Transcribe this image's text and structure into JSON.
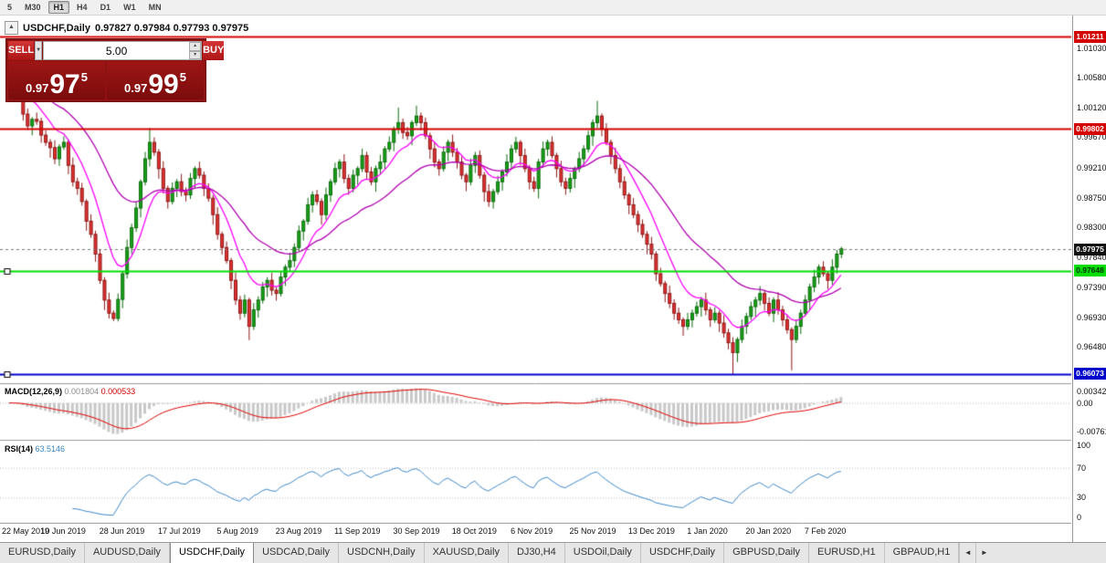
{
  "icons": {
    "collapse": "▲",
    "dropdown": "▼",
    "spin_up": "▲",
    "spin_down": "▼",
    "tab_left": "◄",
    "tab_right": "►"
  },
  "toolbar": {
    "timeframes": [
      {
        "label": "5",
        "active": false
      },
      {
        "label": "M30",
        "active": false
      },
      {
        "label": "H1",
        "active": true
      },
      {
        "label": "H4",
        "active": false
      },
      {
        "label": "D1",
        "active": false
      },
      {
        "label": "W1",
        "active": false
      },
      {
        "label": "MN",
        "active": false
      }
    ]
  },
  "chart": {
    "symbol_title": "USDCHF,Daily",
    "ohlc_text": "0.97827 0.97984 0.97793 0.97975"
  },
  "trade_panel": {
    "sell_label": "SELL",
    "buy_label": "BUY",
    "volume": "5.00",
    "sell_quote": {
      "prefix": "0.97",
      "big": "97",
      "pip": "5"
    },
    "buy_quote": {
      "prefix": "0.97",
      "big": "99",
      "pip": "5"
    }
  },
  "price_scale": {
    "labels": [
      "1.01030",
      "1.00580",
      "1.00120",
      "0.99670",
      "0.99210",
      "0.98750",
      "0.98300",
      "0.97840",
      "0.97390",
      "0.96930",
      "0.96480"
    ]
  },
  "levels": [
    {
      "price": 1.01211,
      "label": "1.01211",
      "color": "#d40000",
      "badge_bg": "#d40000",
      "badge_fg": "#ffffff",
      "width": 2,
      "style": "solid",
      "handles": false
    },
    {
      "price": 0.99802,
      "label": "0.99802",
      "color": "#d40000",
      "badge_bg": "#d40000",
      "badge_fg": "#ffffff",
      "width": 2,
      "style": "solid",
      "handles": false
    },
    {
      "price": 0.97975,
      "label": "0.97975",
      "color": "#777777",
      "badge_bg": "#111111",
      "badge_fg": "#ffffff",
      "width": 1,
      "style": "dashed",
      "handles": false
    },
    {
      "price": 0.97648,
      "label": "0.97648",
      "color": "#00dd00",
      "badge_bg": "#00dd00",
      "badge_fg": "#003300",
      "width": 2,
      "style": "solid",
      "handles": true
    },
    {
      "price": 0.96073,
      "label": "0.96073",
      "color": "#0000cc",
      "badge_bg": "#0000cc",
      "badge_fg": "#ffffff",
      "width": 2,
      "style": "solid",
      "handles": true
    }
  ],
  "chart_data": {
    "type": "candlestick",
    "symbol": "USDCHF",
    "timeframe": "Daily",
    "title": "USDCHF,Daily",
    "x_labels": [
      "22 May 2019",
      "10 Jun 2019",
      "28 Jun 2019",
      "17 Jul 2019",
      "5 Aug 2019",
      "23 Aug 2019",
      "11 Sep 2019",
      "30 Sep 2019",
      "18 Oct 2019",
      "6 Nov 2019",
      "25 Nov 2019",
      "13 Dec 2019",
      "1 Jan 2020",
      "20 Jan 2020",
      "7 Feb 2020"
    ],
    "bars_per_label": 13,
    "y_range": {
      "min": 0.9585,
      "max": 1.0138
    },
    "open_first": 1.0063,
    "closes": [
      1.0055,
      1.0047,
      1.003,
      1.0003,
      0.9985,
      0.9995,
      0.9992,
      0.9971,
      0.996,
      0.9952,
      0.9935,
      0.9953,
      0.996,
      0.9925,
      0.99,
      0.989,
      0.987,
      0.984,
      0.982,
      0.979,
      0.975,
      0.972,
      0.97,
      0.9692,
      0.9721,
      0.976,
      0.98,
      0.983,
      0.986,
      0.99,
      0.9935,
      0.996,
      0.9945,
      0.992,
      0.989,
      0.987,
      0.989,
      0.99,
      0.9885,
      0.988,
      0.9905,
      0.992,
      0.991,
      0.989,
      0.9875,
      0.985,
      0.982,
      0.98,
      0.978,
      0.975,
      0.972,
      0.97,
      0.972,
      0.968,
      0.9705,
      0.972,
      0.974,
      0.975,
      0.9735,
      0.973,
      0.9755,
      0.977,
      0.978,
      0.98,
      0.9825,
      0.984,
      0.9865,
      0.988,
      0.987,
      0.985,
      0.988,
      0.99,
      0.992,
      0.993,
      0.9905,
      0.989,
      0.991,
      0.992,
      0.994,
      0.9915,
      0.99,
      0.992,
      0.993,
      0.995,
      0.996,
      0.998,
      0.999,
      0.9975,
      0.997,
      0.999,
      1.0,
      0.999,
      0.997,
      0.995,
      0.993,
      0.992,
      0.9945,
      0.996,
      0.9945,
      0.993,
      0.991,
      0.99,
      0.9925,
      0.994,
      0.991,
      0.9885,
      0.987,
      0.9885,
      0.99,
      0.9915,
      0.993,
      0.995,
      0.996,
      0.994,
      0.992,
      0.99,
      0.989,
      0.993,
      0.995,
      0.996,
      0.994,
      0.992,
      0.99,
      0.989,
      0.9905,
      0.992,
      0.9935,
      0.995,
      0.997,
      0.999,
      1.0,
      0.998,
      0.996,
      0.994,
      0.992,
      0.99,
      0.988,
      0.9865,
      0.985,
      0.9835,
      0.982,
      0.9805,
      0.979,
      0.976,
      0.9745,
      0.973,
      0.9715,
      0.97,
      0.969,
      0.968,
      0.969,
      0.97,
      0.971,
      0.972,
      0.9705,
      0.969,
      0.97,
      0.9685,
      0.967,
      0.9655,
      0.964,
      0.966,
      0.968,
      0.9695,
      0.971,
      0.972,
      0.973,
      0.9715,
      0.97,
      0.972,
      0.9705,
      0.969,
      0.9675,
      0.966,
      0.968,
      0.97,
      0.972,
      0.974,
      0.9755,
      0.977,
      0.976,
      0.975,
      0.977,
      0.979,
      0.9798
    ],
    "wick_pattern": [
      0.0013,
      0.0006,
      0.0017,
      0.0009,
      0.0012,
      0.0005,
      0.0015,
      0.0008,
      0.0011,
      0.0007,
      0.0016,
      0.0006
    ],
    "wick_overrides": {
      "0": {
        "h": 1.0078
      },
      "23": {
        "l": 0.9688
      },
      "31": {
        "h": 0.9982
      },
      "53": {
        "l": 0.9659
      },
      "86": {
        "h": 1.0013
      },
      "90": {
        "h": 1.0016
      },
      "130": {
        "h": 1.0023
      },
      "160": {
        "l": 0.9607
      },
      "173": {
        "l": 0.9613
      },
      "184": {
        "h": 0.9801
      }
    },
    "up_color": "#17a017",
    "up_border": "#0b6b0b",
    "down_color": "#e23030",
    "down_border": "#8b1616",
    "ma": [
      {
        "period": 10,
        "color": "#ff00ff"
      },
      {
        "period": 30,
        "color": "#b000b0"
      }
    ],
    "macd": {
      "label": "MACD(12,26,9)",
      "value_main": "0.001804",
      "value_signal": "0.000533",
      "fast": 12,
      "slow": 26,
      "signal_period": 9,
      "scale_top": "0.003428",
      "scale_zero": "0.00",
      "scale_bottom": "-0.007618",
      "histogram_color": "#c8c8c8",
      "signal_color": "#e00000"
    },
    "rsi": {
      "label": "RSI(14)",
      "value": "63.5146",
      "period": 14,
      "scale": [
        100,
        70,
        30,
        0
      ],
      "guides": [
        70,
        30
      ],
      "line_color": "#3a87c8"
    }
  },
  "tabs": {
    "items": [
      {
        "label": "EURUSD,Daily",
        "active": false
      },
      {
        "label": "AUDUSD,Daily",
        "active": false
      },
      {
        "label": "USDCHF,Daily",
        "active": true
      },
      {
        "label": "USDCAD,Daily",
        "active": false
      },
      {
        "label": "USDCNH,Daily",
        "active": false
      },
      {
        "label": "XAUUSD,Daily",
        "active": false
      },
      {
        "label": "DJ30,H4",
        "active": false
      },
      {
        "label": "USDOil,Daily",
        "active": false
      },
      {
        "label": "USDCHF,Daily",
        "active": false
      },
      {
        "label": "GBPUSD,Daily",
        "active": false
      },
      {
        "label": "EURUSD,H1",
        "active": false
      },
      {
        "label": "GBPAUD,H1",
        "active": false
      }
    ]
  }
}
